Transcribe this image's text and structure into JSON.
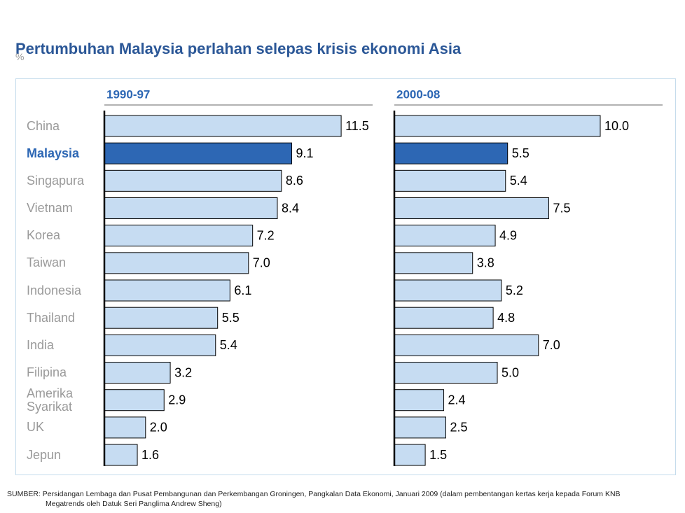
{
  "title": "Pertumbuhan Malaysia perlahan selepas krisis ekonomi Asia",
  "subtitle": "%",
  "source": "SUMBER: Persidangan Lembaga dan Pusat Pembangunan dan Perkembangan Groningen, Pangkalan Data Ekonomi, Januari 2009 (dalam pembentangan kertas kerja kepada Forum KNB Megatrends oleh Datuk Seri Panglima Andrew Sheng)",
  "chart_data": {
    "type": "bar",
    "orientation": "horizontal",
    "categories": [
      "China",
      "Malaysia",
      "Singapura",
      "Vietnam",
      "Korea",
      "Taiwan",
      "Indonesia",
      "Thailand",
      "India",
      "Filipina",
      "Amerika Syarikat",
      "UK",
      "Jepun"
    ],
    "highlight": "Malaysia",
    "color": "#c6dcf2",
    "highlight_color": "#2d67b4",
    "series": [
      {
        "name": "1990-97",
        "values": [
          11.5,
          9.1,
          8.6,
          8.4,
          7.2,
          7.0,
          6.1,
          5.5,
          5.4,
          3.2,
          2.9,
          2.0,
          1.6
        ],
        "value_labels": [
          "11.5",
          "9.1",
          "8.6",
          "8.4",
          "7.2",
          "7.0",
          "6.1",
          "5.5",
          "5.4",
          "3.2",
          "2.9",
          "2.0",
          "1.6"
        ]
      },
      {
        "name": "2000-08",
        "values": [
          10.0,
          5.5,
          5.4,
          7.5,
          4.9,
          3.8,
          5.2,
          4.8,
          7.0,
          5.0,
          2.4,
          2.5,
          1.5
        ],
        "value_labels": [
          "10.0",
          "5.5",
          "5.4",
          "7.5",
          "4.9",
          "3.8",
          "5.2",
          "4.8",
          "7.0",
          "5.0",
          "2.4",
          "2.5",
          "1.5"
        ]
      }
    ]
  }
}
